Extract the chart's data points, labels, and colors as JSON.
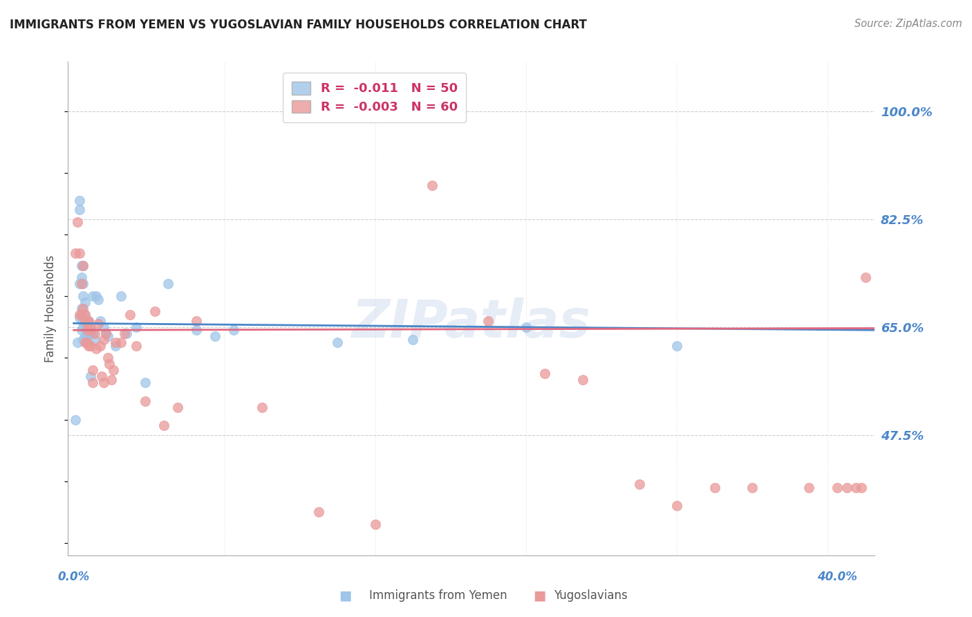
{
  "title": "IMMIGRANTS FROM YEMEN VS YUGOSLAVIAN FAMILY HOUSEHOLDS CORRELATION CHART",
  "source": "Source: ZipAtlas.com",
  "ylabel": "Family Households",
  "ytick_labels": [
    "100.0%",
    "82.5%",
    "65.0%",
    "47.5%"
  ],
  "ytick_values": [
    1.0,
    0.825,
    0.65,
    0.475
  ],
  "ymin": 0.28,
  "ymax": 1.08,
  "xmin": -0.003,
  "xmax": 0.425,
  "blue_color": "#9fc5e8",
  "pink_color": "#ea9999",
  "blue_line_color": "#4a86c8",
  "pink_line_color": "#e06880",
  "axis_label_color": "#4a86c8",
  "watermark": "ZIPatlas",
  "blue_points_x": [
    0.001,
    0.002,
    0.003,
    0.003,
    0.003,
    0.003,
    0.004,
    0.004,
    0.004,
    0.004,
    0.005,
    0.005,
    0.005,
    0.005,
    0.005,
    0.005,
    0.006,
    0.006,
    0.006,
    0.006,
    0.007,
    0.007,
    0.007,
    0.008,
    0.008,
    0.009,
    0.009,
    0.009,
    0.01,
    0.01,
    0.011,
    0.012,
    0.013,
    0.014,
    0.016,
    0.017,
    0.018,
    0.022,
    0.025,
    0.028,
    0.033,
    0.038,
    0.05,
    0.065,
    0.075,
    0.085,
    0.14,
    0.18,
    0.24,
    0.32
  ],
  "blue_points_y": [
    0.5,
    0.625,
    0.855,
    0.84,
    0.72,
    0.665,
    0.75,
    0.73,
    0.68,
    0.645,
    0.75,
    0.72,
    0.7,
    0.66,
    0.65,
    0.63,
    0.69,
    0.67,
    0.65,
    0.635,
    0.66,
    0.65,
    0.635,
    0.66,
    0.645,
    0.65,
    0.64,
    0.57,
    0.7,
    0.64,
    0.63,
    0.7,
    0.695,
    0.66,
    0.65,
    0.64,
    0.635,
    0.62,
    0.7,
    0.64,
    0.65,
    0.56,
    0.72,
    0.645,
    0.635,
    0.645,
    0.625,
    0.63,
    0.65,
    0.62
  ],
  "pink_points_x": [
    0.001,
    0.002,
    0.003,
    0.003,
    0.004,
    0.004,
    0.005,
    0.005,
    0.006,
    0.006,
    0.006,
    0.007,
    0.007,
    0.007,
    0.008,
    0.008,
    0.008,
    0.009,
    0.009,
    0.01,
    0.01,
    0.011,
    0.012,
    0.013,
    0.014,
    0.015,
    0.016,
    0.016,
    0.017,
    0.018,
    0.019,
    0.02,
    0.021,
    0.022,
    0.025,
    0.027,
    0.03,
    0.033,
    0.038,
    0.043,
    0.048,
    0.055,
    0.065,
    0.1,
    0.13,
    0.16,
    0.19,
    0.22,
    0.25,
    0.27,
    0.3,
    0.32,
    0.34,
    0.36,
    0.39,
    0.405,
    0.41,
    0.415,
    0.418,
    0.42
  ],
  "pink_points_y": [
    0.77,
    0.82,
    0.77,
    0.67,
    0.72,
    0.67,
    0.75,
    0.68,
    0.67,
    0.66,
    0.625,
    0.66,
    0.645,
    0.625,
    0.66,
    0.65,
    0.62,
    0.645,
    0.62,
    0.58,
    0.56,
    0.64,
    0.615,
    0.655,
    0.62,
    0.57,
    0.56,
    0.63,
    0.64,
    0.6,
    0.59,
    0.565,
    0.58,
    0.625,
    0.625,
    0.64,
    0.67,
    0.62,
    0.53,
    0.675,
    0.49,
    0.52,
    0.66,
    0.52,
    0.35,
    0.33,
    0.88,
    0.66,
    0.575,
    0.565,
    0.395,
    0.36,
    0.39,
    0.39,
    0.39,
    0.39,
    0.39,
    0.39,
    0.39,
    0.73
  ]
}
